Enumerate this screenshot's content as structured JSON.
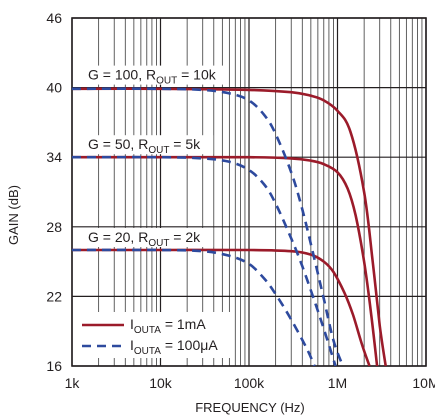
{
  "chart_data": {
    "type": "line",
    "xlabel": "FREQUENCY (Hz)",
    "ylabel": "GAIN (dB)",
    "x_scale": "log",
    "xlim": [
      1000,
      10000000
    ],
    "ylim": [
      16,
      46
    ],
    "grid": true,
    "x_ticks": [
      {
        "value": 1000,
        "label": "1k"
      },
      {
        "value": 10000,
        "label": "10k"
      },
      {
        "value": 100000,
        "label": "100k"
      },
      {
        "value": 1000000,
        "label": "1M"
      },
      {
        "value": 10000000,
        "label": "10M"
      }
    ],
    "y_ticks": [
      {
        "value": 16,
        "label": "16"
      },
      {
        "value": 22,
        "label": "22"
      },
      {
        "value": 28,
        "label": "28"
      },
      {
        "value": 34,
        "label": "34"
      },
      {
        "value": 40,
        "label": "40"
      },
      {
        "value": 46,
        "label": "46"
      }
    ],
    "annotations": [
      {
        "main": "G = 100, R",
        "sub": "OUT",
        "tail": " = 10k"
      },
      {
        "main": "G = 50, R",
        "sub": "OUT",
        "tail": " = 5k"
      },
      {
        "main": "G = 20, R",
        "sub": "OUT",
        "tail": " = 2k"
      }
    ],
    "legend": {
      "position": "bottom-left",
      "entries": [
        {
          "main": "I",
          "sub": "OUTA",
          "tail": " = 1mA",
          "style": "solid",
          "color": "#9b1b2a"
        },
        {
          "main": "I",
          "sub": "OUTA",
          "tail": " = 100μA",
          "style": "dashed",
          "color": "#2e4a9e"
        }
      ]
    },
    "series": [
      {
        "style": "solid",
        "color": "#9b1b2a",
        "x": [
          1000,
          10000,
          100000,
          300000,
          500000,
          700000,
          1000000,
          1400000,
          2000000,
          2500000,
          3000000,
          3500000
        ],
        "y": [
          39.9,
          39.9,
          39.8,
          39.6,
          39.3,
          38.9,
          38.0,
          36.2,
          31.0,
          25.0,
          19.5,
          16.0
        ]
      },
      {
        "style": "solid",
        "color": "#9b1b2a",
        "x": [
          1000,
          10000,
          100000,
          300000,
          500000,
          700000,
          1000000,
          1300000,
          1600000,
          2000000,
          2400000,
          2800000
        ],
        "y": [
          34.0,
          34.0,
          34.0,
          33.9,
          33.7,
          33.4,
          32.7,
          31.3,
          29.0,
          25.0,
          20.5,
          16.0
        ]
      },
      {
        "style": "solid",
        "color": "#9b1b2a",
        "x": [
          1000,
          10000,
          100000,
          300000,
          500000,
          700000,
          900000,
          1200000,
          1500000,
          1900000,
          2300000
        ],
        "y": [
          26.0,
          26.0,
          26.0,
          25.9,
          25.6,
          25.0,
          24.1,
          22.3,
          20.4,
          17.8,
          16.0
        ]
      },
      {
        "style": "dashed",
        "color": "#2e4a9e",
        "x": [
          1000,
          10000,
          30000,
          60000,
          100000,
          150000,
          200000,
          300000,
          400000,
          550000,
          700000,
          900000,
          1150000
        ],
        "y": [
          39.9,
          39.9,
          39.8,
          39.5,
          38.9,
          37.6,
          36.0,
          32.7,
          29.5,
          25.2,
          21.8,
          18.2,
          16.0
        ]
      },
      {
        "style": "dashed",
        "color": "#2e4a9e",
        "x": [
          1000,
          10000,
          30000,
          60000,
          100000,
          150000,
          200000,
          300000,
          400000,
          550000,
          700000,
          950000
        ],
        "y": [
          34.0,
          34.0,
          33.9,
          33.6,
          32.9,
          31.6,
          30.0,
          27.0,
          24.6,
          21.6,
          19.2,
          16.0
        ]
      },
      {
        "style": "dashed",
        "color": "#2e4a9e",
        "x": [
          1000,
          10000,
          30000,
          60000,
          100000,
          150000,
          200000,
          300000,
          450000,
          550000
        ],
        "y": [
          26.0,
          26.0,
          25.9,
          25.5,
          24.8,
          23.5,
          22.2,
          20.0,
          17.5,
          16.0
        ]
      }
    ]
  }
}
